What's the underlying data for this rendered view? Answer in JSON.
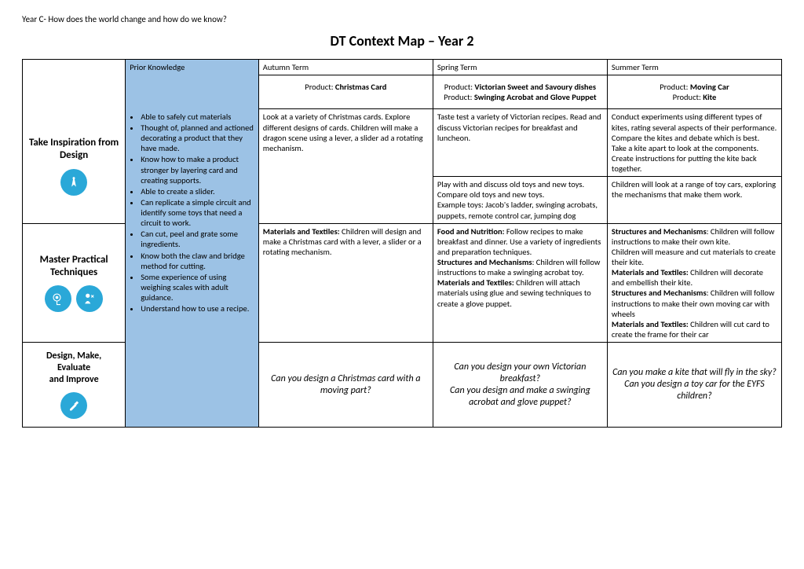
{
  "header_note": "Year C- How does the world change and how do we know?",
  "title": "DT Context Map – Year 2",
  "columns": {
    "prior": "Prior Knowledge",
    "autumn": "Autumn Term",
    "spring": "Spring Term",
    "summer": "Summer Term"
  },
  "products": {
    "autumn_label": "Product: ",
    "autumn_bold": "Christmas Card",
    "spring1_label": "Product: ",
    "spring1_bold": "Victorian Sweet and Savoury dishes",
    "spring2_label": "Product: ",
    "spring2_bold": "Swinging Acrobat and Glove Puppet",
    "summer1_label": "Product: ",
    "summer1_bold": "Moving Car",
    "summer2_label": "Product: ",
    "summer2_bold": "Kite"
  },
  "rows": {
    "inspiration": "Take Inspiration from Design",
    "practical": "Master Practical Techniques",
    "design": "Design, Make, Evaluate and Improve"
  },
  "prior_items": [
    "Able to safely cut materials",
    "Thought of, planned and actioned decorating a product that they have made.",
    "Know how to make a product stronger by layering card and creating supports.",
    "Able to create a slider.",
    "Can replicate a simple circuit and identify some toys that need a circuit to work.",
    "Can cut, peel and grate some ingredients.",
    "Know both the claw and bridge method for cutting.",
    "Some experience of using weighing scales with adult guidance.",
    "Understand how to use a recipe."
  ],
  "inspiration": {
    "autumn": "Look at a variety of Christmas cards. Explore different designs of cards. Children will make a dragon scene using a lever, a slider ad a rotating mechanism.",
    "spring_a": "Taste test a variety of Victorian recipes. Read and discuss Victorian recipes for breakfast and luncheon.",
    "spring_b": "Play with and discuss old toys and new toys.\nCompare old toys and new toys.\nExample toys: Jacob's ladder, swinging acrobats, puppets, remote control car, jumping dog",
    "summer_a": "Conduct experiments using different types of kites, rating several aspects of their performance. Compare the kites and debate which is best.\nTake a kite apart to look at the components. Create instructions for putting the kite back together.",
    "summer_b": "Children will look at a range of toy cars, exploring the mechanisms that make them work."
  },
  "practical": {
    "autumn_b1": "Materials and Textiles:",
    "autumn_t1": " Children will design and make a Christmas card with a lever, a slider or a rotating mechanism.",
    "spring_b1": "Food and Nutrition:",
    "spring_t1": " Follow recipes to make breakfast and dinner. Use a variety of ingredients and preparation techniques.",
    "spring_b2": "Structures and Mechanisms",
    "spring_t2": ": Children will follow instructions to make a swinging acrobat toy.",
    "spring_b3": "Materials and Textiles:",
    "spring_t3": " Children will attach materials using glue and sewing techniques to create a glove puppet.",
    "summer_b1": "Structures and Mechanisms",
    "summer_t1": ": Children will follow instructions to make their own kite.",
    "summer_t1b": "Children will measure and cut materials to create their kite.",
    "summer_b2": "Materials and Textiles:",
    "summer_t2": " Children will decorate and embellish their kite.",
    "summer_b3": "Structures and Mechanisms",
    "summer_t3": ": Children will follow instructions to make their own moving car with wheels",
    "summer_b4": "Materials and Textiles:",
    "summer_t4": " Children will cut card to create the frame for their car"
  },
  "design_q": {
    "autumn": "Can you design a Christmas card with a moving part?",
    "spring": "Can you design your own Victorian breakfast?\nCan you design and make a swinging acrobat and glove puppet?",
    "summer": "Can you make a kite that will fly in the sky?\nCan you design a toy car for the EYFS children?"
  },
  "colors": {
    "prior_bg": "#9cc2e5",
    "icon_bg": "#2aa8d8"
  }
}
